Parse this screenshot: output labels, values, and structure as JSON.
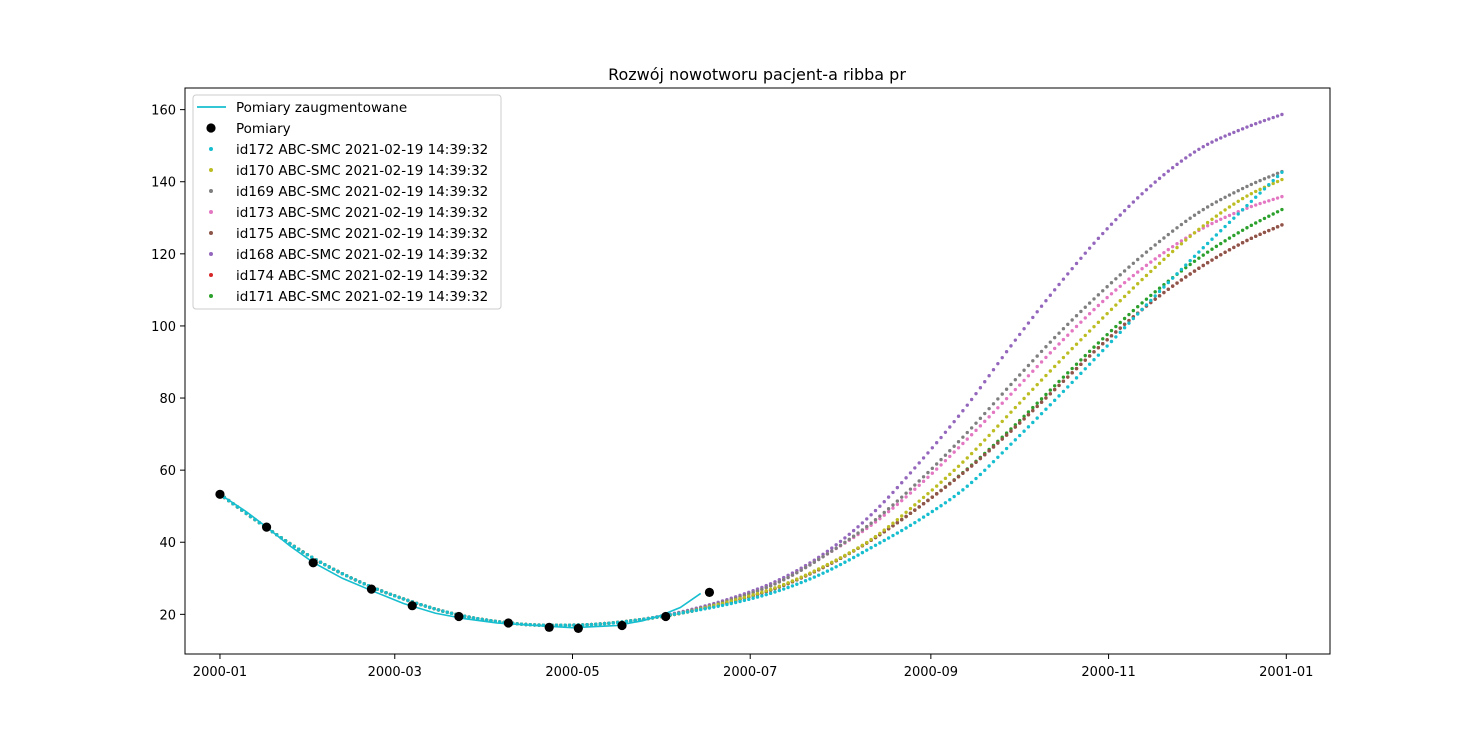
{
  "chart_data": {
    "type": "scatter",
    "title": "Rozwój nowotworu pacjent-a ribba pr",
    "xlabel": "",
    "ylabel": "",
    "x_range": [
      "1999-12-20",
      "2001-01-16"
    ],
    "ylim": [
      9,
      166
    ],
    "x_ticks": [
      "2000-01",
      "2000-03",
      "2000-05",
      "2000-07",
      "2000-09",
      "2000-11",
      "2001-01"
    ],
    "y_ticks": [
      20,
      40,
      60,
      80,
      100,
      120,
      140,
      160
    ],
    "grid": false,
    "legend_position": "top-left",
    "augmented": {
      "name": "Pomiary zaugmentowane",
      "color": "#17becf",
      "points": [
        {
          "x": "2000-01-01",
          "y": 53.3
        },
        {
          "x": "2000-01-10",
          "y": 48.5
        },
        {
          "x": "2000-01-17",
          "y": 44.2
        },
        {
          "x": "2000-01-25",
          "y": 39.0
        },
        {
          "x": "2000-02-02",
          "y": 34.4
        },
        {
          "x": "2000-02-12",
          "y": 30.0
        },
        {
          "x": "2000-02-22",
          "y": 26.6
        },
        {
          "x": "2000-03-04",
          "y": 23.0
        },
        {
          "x": "2000-03-15",
          "y": 20.3
        },
        {
          "x": "2000-03-25",
          "y": 18.8
        },
        {
          "x": "2000-04-05",
          "y": 17.6
        },
        {
          "x": "2000-04-20",
          "y": 16.8
        },
        {
          "x": "2000-05-01",
          "y": 16.3
        },
        {
          "x": "2000-05-16",
          "y": 16.9
        },
        {
          "x": "2000-05-25",
          "y": 18.2
        },
        {
          "x": "2000-05-31",
          "y": 19.6
        },
        {
          "x": "2000-06-07",
          "y": 21.9
        },
        {
          "x": "2000-06-14",
          "y": 25.8
        }
      ]
    },
    "measurements": {
      "name": "Pomiary",
      "color": "#000000",
      "points": [
        {
          "x": "2000-01-01",
          "y": 53.3
        },
        {
          "x": "2000-01-17",
          "y": 44.2
        },
        {
          "x": "2000-02-02",
          "y": 34.3
        },
        {
          "x": "2000-02-22",
          "y": 27.0
        },
        {
          "x": "2000-03-07",
          "y": 22.4
        },
        {
          "x": "2000-03-23",
          "y": 19.4
        },
        {
          "x": "2000-04-09",
          "y": 17.6
        },
        {
          "x": "2000-04-23",
          "y": 16.4
        },
        {
          "x": "2000-05-03",
          "y": 16.1
        },
        {
          "x": "2000-05-18",
          "y": 16.9
        },
        {
          "x": "2000-06-02",
          "y": 19.4
        },
        {
          "x": "2000-06-17",
          "y": 26.1
        }
      ]
    },
    "x_sim": [
      "2000-01-01",
      "2000-01-17",
      "2000-02-02",
      "2000-02-18",
      "2000-03-05",
      "2000-03-21",
      "2000-04-06",
      "2000-04-22",
      "2000-05-08",
      "2000-05-24",
      "2000-06-09",
      "2000-06-25",
      "2000-07-11",
      "2000-07-27",
      "2000-08-12",
      "2000-08-28",
      "2000-09-13",
      "2000-09-29",
      "2000-10-15",
      "2000-10-31",
      "2000-11-16",
      "2000-12-02",
      "2000-12-18",
      "2000-12-31"
    ],
    "series": [
      {
        "name": "id172 ABC-SMC 2021-02-19 14:39:32",
        "color": "#17becf",
        "values": [
          53.3,
          44.0,
          35.6,
          29.0,
          24.0,
          20.2,
          17.9,
          17.0,
          17.2,
          18.5,
          20.6,
          23.1,
          26.6,
          31.8,
          38.7,
          46.2,
          55.2,
          67.6,
          80.6,
          94.0,
          107.5,
          120.5,
          133.0,
          143.0
        ]
      },
      {
        "name": "id170 ABC-SMC 2021-02-19 14:39:32",
        "color": "#bcbd22",
        "values": [
          53.3,
          44.0,
          35.6,
          29.0,
          24.0,
          20.2,
          17.9,
          17.0,
          17.2,
          18.5,
          20.6,
          23.8,
          27.8,
          33.6,
          41.0,
          51.4,
          63.0,
          76.5,
          90.0,
          103.0,
          115.5,
          126.8,
          135.8,
          140.8
        ]
      },
      {
        "name": "id169 ABC-SMC 2021-02-19 14:39:32",
        "color": "#7f7f7f",
        "values": [
          53.3,
          44.0,
          35.6,
          29.0,
          24.0,
          20.2,
          17.9,
          17.0,
          17.2,
          18.5,
          20.8,
          24.2,
          29.0,
          36.5,
          45.6,
          57.0,
          70.0,
          84.2,
          98.0,
          110.5,
          121.8,
          131.5,
          138.5,
          143.0
        ]
      },
      {
        "name": "id173 ABC-SMC 2021-02-19 14:39:32",
        "color": "#e377c2",
        "values": [
          53.3,
          44.0,
          35.6,
          29.0,
          24.0,
          20.2,
          17.9,
          17.0,
          17.2,
          18.5,
          20.8,
          24.2,
          29.0,
          36.5,
          45.0,
          55.8,
          68.2,
          81.5,
          95.0,
          107.5,
          118.0,
          126.5,
          132.5,
          136.0
        ]
      },
      {
        "name": "id175 ABC-SMC 2021-02-19 14:39:32",
        "color": "#8c564b",
        "values": [
          53.3,
          44.0,
          35.6,
          29.0,
          24.0,
          20.2,
          17.9,
          17.0,
          17.2,
          18.5,
          20.6,
          23.6,
          27.6,
          33.4,
          40.8,
          49.8,
          59.8,
          71.2,
          83.5,
          95.8,
          106.8,
          116.0,
          123.5,
          128.2
        ]
      },
      {
        "name": "id168 ABC-SMC 2021-02-19 14:39:32",
        "color": "#9467bd",
        "values": [
          53.3,
          44.0,
          35.6,
          29.0,
          24.0,
          20.2,
          17.9,
          17.0,
          17.2,
          18.5,
          21.0,
          24.6,
          29.6,
          37.2,
          48.0,
          62.0,
          77.5,
          95.0,
          111.5,
          126.5,
          139.2,
          149.0,
          155.0,
          158.8
        ]
      },
      {
        "name": "id174 ABC-SMC 2021-02-19 14:39:32",
        "color": "#d62728",
        "values": [
          53.3,
          44.0,
          35.6,
          29.0,
          24.0,
          20.2,
          17.9,
          17.0,
          17.2,
          18.5,
          20.6,
          23.6,
          27.6,
          33.4,
          40.8,
          49.8,
          59.8,
          71.2,
          83.5,
          95.8,
          106.8,
          116.0,
          123.5,
          128.2
        ]
      },
      {
        "name": "id171 ABC-SMC 2021-02-19 14:39:32",
        "color": "#2ca02c",
        "values": [
          53.3,
          44.0,
          35.6,
          29.0,
          24.0,
          20.2,
          17.9,
          17.0,
          17.2,
          18.5,
          20.6,
          23.6,
          27.6,
          33.4,
          40.8,
          49.8,
          60.0,
          71.8,
          84.6,
          97.2,
          108.8,
          118.8,
          127.0,
          132.5
        ]
      }
    ]
  }
}
